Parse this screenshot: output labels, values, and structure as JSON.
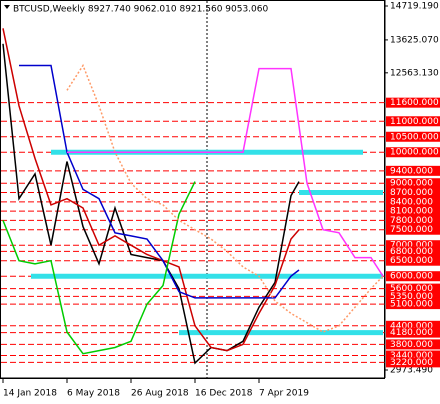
{
  "chart_data": {
    "type": "line",
    "title": "BTCUSD,Weekly  8927.740 9062.010 8921.560 9053.060",
    "xlim": [
      "2018-01-14",
      "2019-11-10"
    ],
    "xticks": [
      {
        "value": "2018-01-14",
        "label": "14 Jan 2018"
      },
      {
        "value": "2018-05-06",
        "label": "6 May 2018"
      },
      {
        "value": "2018-08-26",
        "label": "26 Aug 2018"
      },
      {
        "value": "2018-12-16",
        "label": "16 Dec 2018"
      },
      {
        "value": "2019-04-07",
        "label": "7 Apr 2019"
      }
    ],
    "ylim": [
      2973.49,
      14719.19
    ],
    "yticks": [
      {
        "value": 14719.19,
        "label": "14719.190"
      },
      {
        "value": 13625.07,
        "label": "13625.070"
      },
      {
        "value": 12563.13,
        "label": "12563.130"
      },
      {
        "value": 2973.49,
        "label": "2973.490"
      }
    ],
    "levels": [
      {
        "value": 11600,
        "label": "11600.000"
      },
      {
        "value": 11000,
        "label": "11000.000"
      },
      {
        "value": 10500,
        "label": "10500.000"
      },
      {
        "value": 10000,
        "label": "10000.000"
      },
      {
        "value": 9400,
        "label": "9400.000"
      },
      {
        "value": 9000,
        "label": "9000.000"
      },
      {
        "value": 8700,
        "label": "8700.000"
      },
      {
        "value": 8400,
        "label": "8400.000"
      },
      {
        "value": 8100,
        "label": "8100.000"
      },
      {
        "value": 7800,
        "label": "7800.000"
      },
      {
        "value": 7500,
        "label": "7500.000"
      },
      {
        "value": 7000,
        "label": "7000.000"
      },
      {
        "value": 6800,
        "label": "6800.000"
      },
      {
        "value": 6500,
        "label": "6500.000"
      },
      {
        "value": 6000,
        "label": "6000.000"
      },
      {
        "value": 5600,
        "label": "5600.000"
      },
      {
        "value": 5350,
        "label": "5350.000"
      },
      {
        "value": 5100,
        "label": "5100.000"
      },
      {
        "value": 4400,
        "label": "4400.000"
      },
      {
        "value": 4180,
        "label": "4180.000"
      },
      {
        "value": 3800,
        "label": "3800.000"
      },
      {
        "value": 3440,
        "label": "3440.000"
      },
      {
        "value": 3220,
        "label": "3220.000"
      }
    ],
    "level_color": "#ff0000",
    "zones": [
      {
        "value": 10000,
        "x": [
          "2018-04-08",
          "2019-10-06"
        ]
      },
      {
        "value": 8700,
        "x": [
          "2019-06-16",
          "2019-11-10"
        ]
      },
      {
        "value": 6000,
        "x": [
          "2018-03-04",
          "2019-11-10"
        ]
      },
      {
        "value": 4180,
        "x": [
          "2018-11-18",
          "2019-11-10"
        ]
      }
    ],
    "zone_color": "#33e0e8",
    "series": [
      {
        "color": "#000000",
        "x": [
          "2018-01-14",
          "2018-02-11",
          "2018-03-11",
          "2018-04-08",
          "2018-05-06",
          "2018-06-03",
          "2018-07-01",
          "2018-07-29",
          "2018-08-26",
          "2018-09-23",
          "2018-10-21",
          "2018-11-18",
          "2018-12-16",
          "2019-01-13",
          "2019-02-10",
          "2019-03-10",
          "2019-04-07",
          "2019-05-05",
          "2019-06-02",
          "2019-06-16"
        ],
        "values": [
          13500,
          8500,
          9300,
          7000,
          9700,
          7600,
          6400,
          8200,
          6700,
          6600,
          6500,
          5600,
          3200,
          3700,
          3600,
          3900,
          5000,
          5800,
          8600,
          9053.06
        ]
      },
      {
        "color": "#cc0000",
        "x": [
          "2018-01-14",
          "2018-02-11",
          "2018-03-11",
          "2018-04-08",
          "2018-05-06",
          "2018-06-03",
          "2018-07-01",
          "2018-07-29",
          "2018-08-26",
          "2018-09-23",
          "2018-10-21",
          "2018-11-18",
          "2018-12-16",
          "2019-01-13",
          "2019-02-10",
          "2019-03-10",
          "2019-04-07",
          "2019-05-05",
          "2019-06-02",
          "2019-06-16"
        ],
        "values": [
          14000,
          11500,
          9800,
          8300,
          8500,
          8200,
          7000,
          7300,
          7000,
          6700,
          6500,
          6300,
          4400,
          3700,
          3600,
          3800,
          4800,
          5700,
          7200,
          7500
        ]
      },
      {
        "color": "#0000cc",
        "x": [
          "2018-01-14",
          "2018-02-11",
          "2018-03-11",
          "2018-04-08",
          "2018-05-06",
          "2018-06-03",
          "2018-07-01",
          "2018-07-29",
          "2018-08-26",
          "2018-09-23",
          "2018-10-21",
          "2018-11-18",
          "2018-12-16",
          "2019-01-13",
          "2019-02-10",
          "2019-03-10",
          "2019-04-07",
          "2019-05-05",
          "2019-06-02",
          "2019-06-16"
        ],
        "values": [
          null,
          12800,
          12800,
          12800,
          10000,
          8800,
          8500,
          7400,
          7300,
          7200,
          6500,
          5500,
          5300,
          5300,
          5300,
          5300,
          5300,
          5300,
          6000,
          6200
        ]
      },
      {
        "color": "#00cc00",
        "x": [
          "2018-01-14",
          "2018-02-11",
          "2018-03-11",
          "2018-04-08",
          "2018-05-06",
          "2018-06-03",
          "2018-07-01",
          "2018-07-29",
          "2018-08-26",
          "2018-09-23",
          "2018-10-21",
          "2018-11-18",
          "2018-12-16"
        ],
        "values": [
          7800,
          6500,
          6400,
          6500,
          4200,
          3500,
          3600,
          3700,
          3900,
          5100,
          5700,
          8000,
          9053.06
        ]
      },
      {
        "color": "#ff9966",
        "dashed": true,
        "x": [
          "2018-04-08",
          "2018-05-06",
          "2018-06-03",
          "2018-07-01",
          "2018-07-29",
          "2018-08-26",
          "2018-09-23",
          "2018-10-21",
          "2018-11-18",
          "2018-12-16",
          "2019-01-13",
          "2019-02-10",
          "2019-03-10",
          "2019-04-07",
          "2019-05-05",
          "2019-06-02",
          "2019-06-30",
          "2019-07-28",
          "2019-08-25",
          "2019-09-22",
          "2019-10-20",
          "2019-11-10"
        ],
        "values": [
          null,
          12000,
          12800,
          11500,
          10000,
          9000,
          8500,
          8300,
          7800,
          7500,
          7200,
          6800,
          6300,
          6000,
          5200,
          4800,
          4500,
          4200,
          4400,
          5000,
          5600,
          6000
        ]
      },
      {
        "color": "#ff33ff",
        "x": [
          "2018-04-08",
          "2018-05-06",
          "2018-06-03",
          "2018-07-01",
          "2018-07-29",
          "2018-08-26",
          "2018-09-23",
          "2018-10-21",
          "2018-11-18",
          "2018-12-16",
          "2019-01-13",
          "2019-02-10",
          "2019-03-10",
          "2019-04-07",
          "2019-05-05",
          "2019-06-02",
          "2019-06-30",
          "2019-07-28",
          "2019-08-25",
          "2019-09-22",
          "2019-10-20",
          "2019-11-10"
        ],
        "values": [
          null,
          10000,
          10000,
          10000,
          10000,
          10000,
          10000,
          10000,
          10000,
          10000,
          10000,
          10000,
          10000,
          12700,
          12700,
          12700,
          9000,
          7500,
          7400,
          6600,
          6600,
          6000
        ]
      }
    ]
  }
}
